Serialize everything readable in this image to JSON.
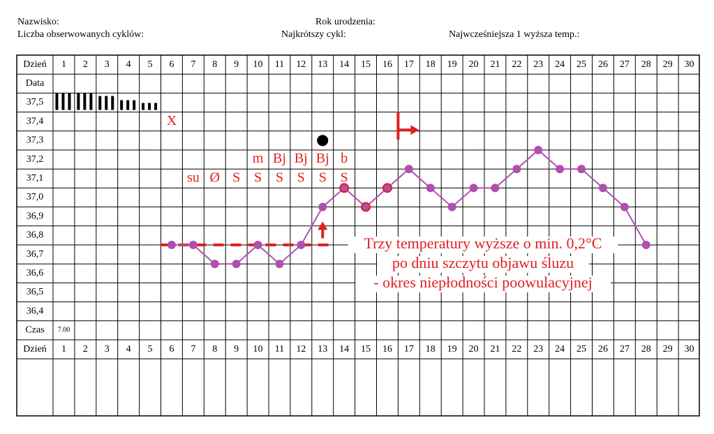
{
  "header": {
    "surname_label": "Nazwisko:",
    "birth_year_label": "Rok urodzenia:",
    "cycles_label": "Liczba obserwowanych cyklów:",
    "shortest_cycle_label": "Najkrótszy cykl:",
    "earliest_high_temp_label": "Najwcześniejsza 1 wyższa temp.:"
  },
  "table": {
    "day_label": "Dzień",
    "date_label": "Data",
    "time_label": "Czas",
    "time_value": "7.00",
    "days": [
      "1",
      "2",
      "3",
      "4",
      "5",
      "6",
      "7",
      "8",
      "9",
      "10",
      "11",
      "12",
      "13",
      "14",
      "15",
      "16",
      "17",
      "18",
      "19",
      "20",
      "21",
      "22",
      "23",
      "24",
      "25",
      "26",
      "27",
      "28",
      "29",
      "30"
    ],
    "temp_rows": [
      "37,5",
      "37,4",
      "37,3",
      "37,2",
      "37,1",
      "37,0",
      "36,9",
      "36,8",
      "36,7",
      "36,6",
      "36,5",
      "36,4"
    ]
  },
  "chart_data": {
    "type": "line",
    "x": [
      6,
      7,
      8,
      9,
      10,
      11,
      12,
      13,
      14,
      15,
      16,
      17,
      18,
      19,
      20,
      21,
      22,
      23,
      24,
      25,
      26,
      27,
      28
    ],
    "series": [
      {
        "values": [
          36.65,
          36.65,
          36.55,
          36.55,
          36.65,
          36.55,
          36.65,
          36.85,
          36.95,
          36.85,
          36.95,
          37.05,
          36.95,
          36.85,
          36.95,
          36.95,
          37.05,
          37.15,
          37.05,
          37.05,
          36.95,
          36.85,
          36.65
        ]
      }
    ],
    "circled_days": [
      14,
      15,
      16
    ],
    "cover_line": {
      "value": 36.65,
      "from_day": 5.5,
      "to_day": 13.5
    },
    "period_bars": [
      {
        "day": 1,
        "count": 3,
        "height": "tall"
      },
      {
        "day": 2,
        "count": 3,
        "height": "tall"
      },
      {
        "day": 3,
        "count": 3,
        "height": "medium"
      },
      {
        "day": 4,
        "count": 3,
        "height": "short"
      },
      {
        "day": 5,
        "count": 3,
        "height": "smaller"
      }
    ],
    "mucus_symbols_row_37_0": [
      {
        "day": 7,
        "text": "su"
      },
      {
        "day": 8,
        "text": "Ø"
      },
      {
        "day": 9,
        "text": "S"
      },
      {
        "day": 10,
        "text": "S"
      },
      {
        "day": 11,
        "text": "S"
      },
      {
        "day": 12,
        "text": "S"
      },
      {
        "day": 13,
        "text": "S"
      },
      {
        "day": 14,
        "text": "S"
      }
    ],
    "mucus_symbols_row_37_1": [
      {
        "day": 10,
        "text": "m"
      },
      {
        "day": 11,
        "text": "Bj"
      },
      {
        "day": 12,
        "text": "Bj"
      },
      {
        "day": 13,
        "text": "Bj"
      },
      {
        "day": 14,
        "text": "b"
      }
    ],
    "x_mark": {
      "day": 6,
      "text": "X"
    },
    "peak_dot_day": 13,
    "arrow_up_day": 13,
    "flag_day": 17,
    "annotation_lines": [
      "Trzy temperatury wyższe o min. 0,2°C",
      "po dniu szczytu objawu śluzu",
      "- okres niepłodności poowulacyjnej"
    ],
    "colors": {
      "line": "#b04fb0",
      "marker": "#b04fb0",
      "red": "#e02020",
      "black": "#000000"
    }
  }
}
